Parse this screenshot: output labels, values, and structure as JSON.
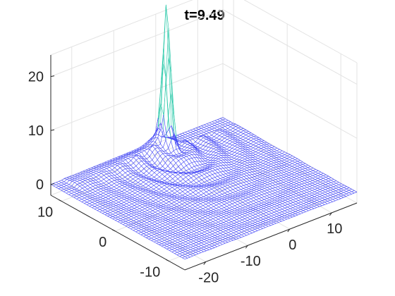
{
  "chart_data": {
    "type": "surface",
    "title": "t=9.49",
    "xlabel": "",
    "ylabel": "",
    "zlabel": "",
    "x_ticks": [
      -20,
      -10,
      0,
      10
    ],
    "y_ticks": [
      -10,
      0,
      10
    ],
    "z_ticks": [
      0,
      10,
      20
    ],
    "x_tick_labels": [
      "-20",
      "-10",
      "0",
      "10"
    ],
    "y_tick_labels": [
      "-10",
      "0",
      "10"
    ],
    "z_tick_labels": [
      "0",
      "10",
      "20"
    ],
    "xlim": [
      -25,
      16
    ],
    "ylim": [
      -13,
      12
    ],
    "zlim": [
      -2,
      24
    ],
    "grid": true,
    "surface": {
      "style": "mesh",
      "color": "#3b3ff5",
      "peak_color": "#27c8a8",
      "peak": {
        "x": 0,
        "y": 10,
        "z": 23.2
      },
      "background_level": 0,
      "ridge": {
        "from": {
          "x": -18,
          "y": 10
        },
        "to": {
          "x": 0,
          "y": 10
        },
        "height": 1.6
      },
      "wake": {
        "description_free": true,
        "amplitude": 1.0
      }
    }
  }
}
